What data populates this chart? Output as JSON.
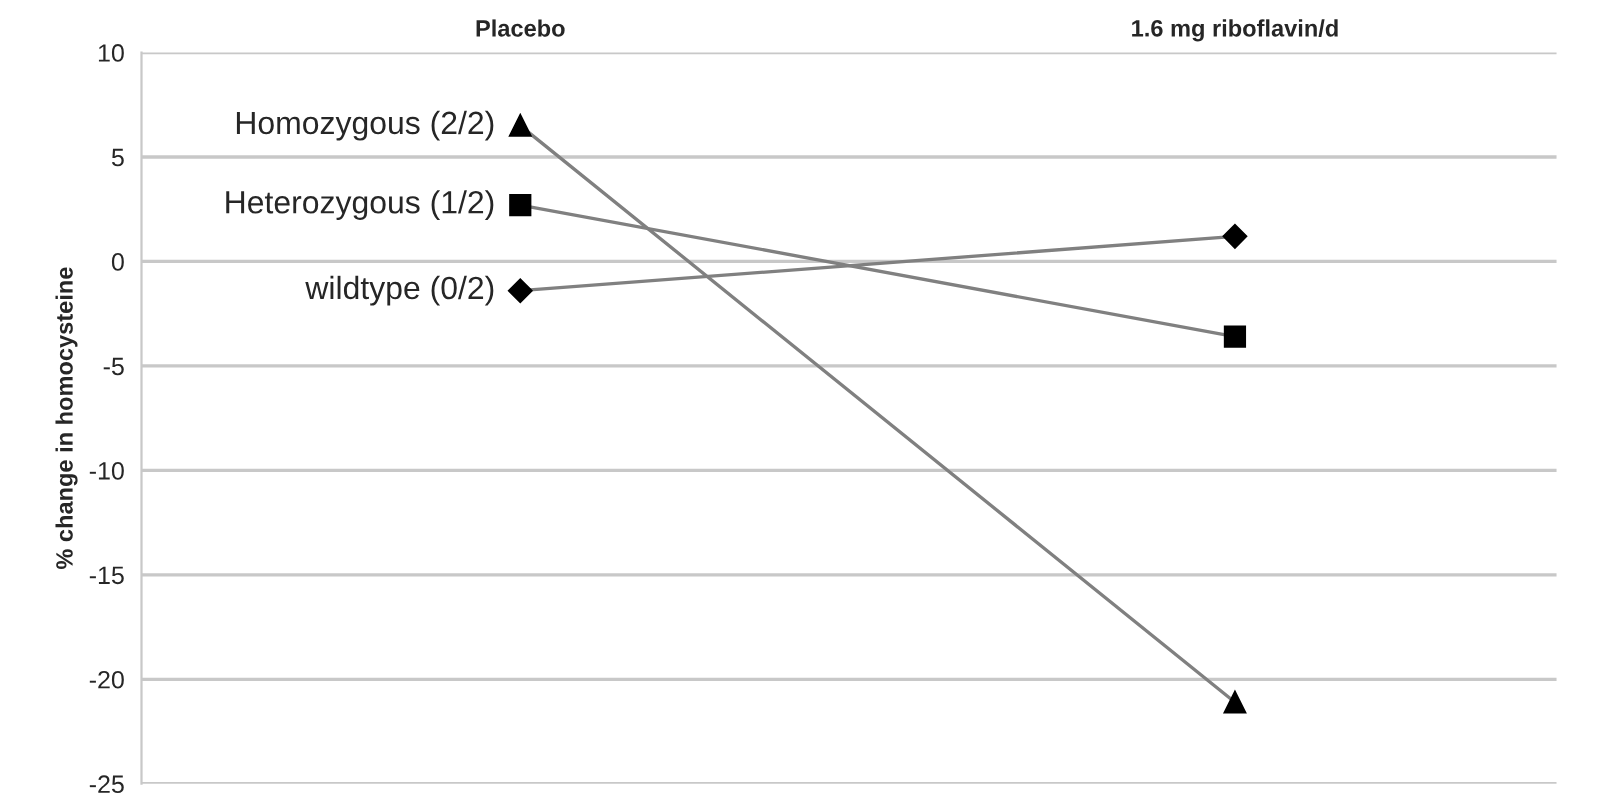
{
  "chart_data": {
    "type": "line",
    "ylabel": "% change in homocysteine",
    "categories": [
      "Placebo",
      "1.6 mg riboflavin/d"
    ],
    "series": [
      {
        "name": "Homozygous (2/2)",
        "color": "#000000",
        "marker": "triangle",
        "values": [
          6.5,
          -21.1
        ]
      },
      {
        "name": "Heterozygous (1/2)",
        "color": "#000000",
        "marker": "square",
        "values": [
          2.7,
          -3.6
        ]
      },
      {
        "name": "wildtype (0/2)",
        "color": "#000000",
        "marker": "diamond",
        "values": [
          -1.4,
          1.2
        ]
      }
    ],
    "ylim": [
      -25,
      10
    ],
    "yticks": [
      -25,
      -20,
      -15,
      -10,
      -5,
      0,
      5,
      10
    ],
    "grid": "y",
    "legend": false,
    "line_style": "solid"
  }
}
